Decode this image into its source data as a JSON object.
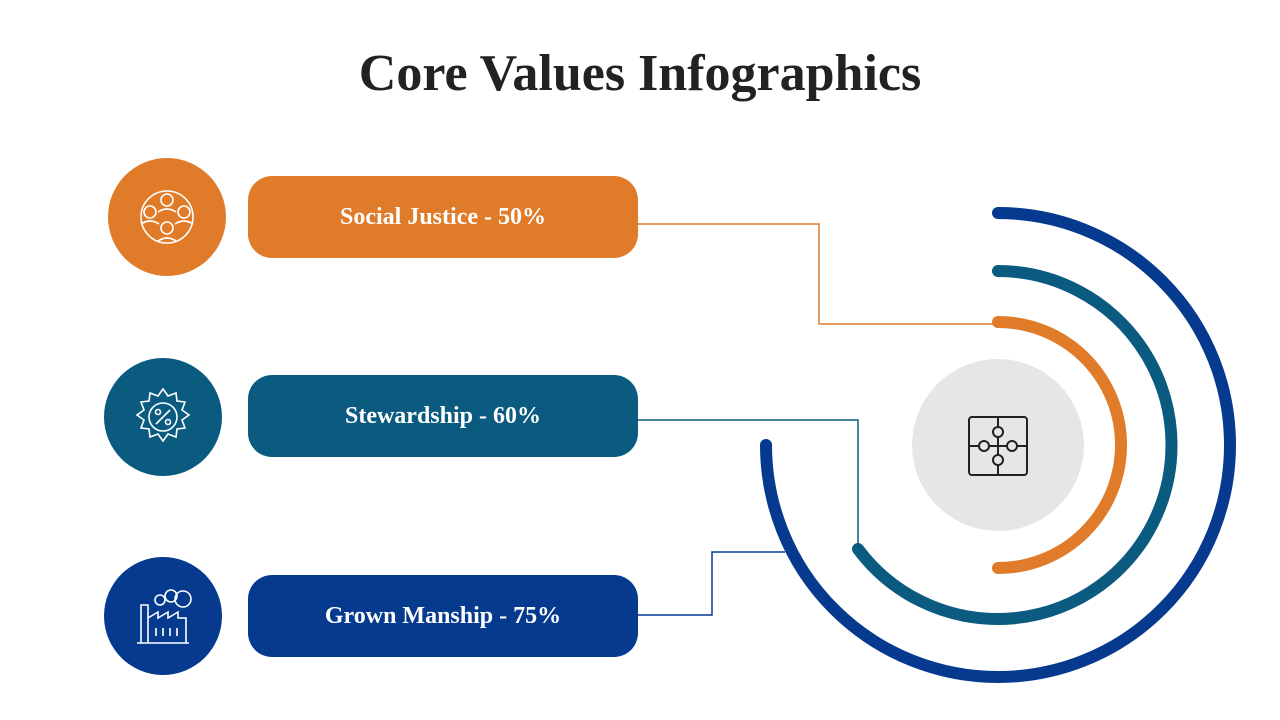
{
  "title": "Core Values Infographics",
  "items": [
    {
      "label": "Social Justice - 50%"
    },
    {
      "label": "Stewardship - 60%"
    },
    {
      "label": "Grown Manship - 75%"
    }
  ]
}
